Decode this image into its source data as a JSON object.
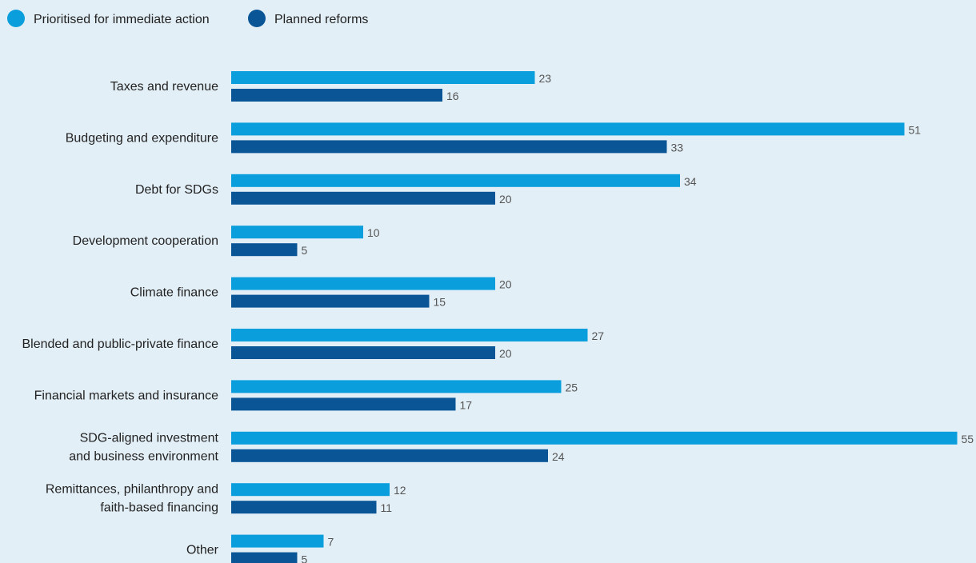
{
  "chart_data": {
    "type": "bar",
    "orientation": "horizontal",
    "title": "",
    "xlabel": "",
    "ylabel": "",
    "legend_position": "top-left",
    "grid": false,
    "xlim": [
      0,
      55
    ],
    "categories": [
      [
        "Taxes and revenue"
      ],
      [
        "Budgeting and expenditure"
      ],
      [
        "Debt for SDGs"
      ],
      [
        "Development cooperation"
      ],
      [
        "Climate finance"
      ],
      [
        "Blended and public-private finance"
      ],
      [
        "Financial markets and insurance"
      ],
      [
        "SDG-aligned investment",
        "and business environment"
      ],
      [
        "Remittances, philanthropy and",
        "faith-based financing"
      ],
      [
        "Other"
      ]
    ],
    "series": [
      {
        "name": "Prioritised for immediate action",
        "color": "#0a9fdc",
        "values": [
          23,
          51,
          34,
          10,
          20,
          27,
          25,
          55,
          12,
          7
        ]
      },
      {
        "name": "Planned reforms",
        "color": "#0a5596",
        "values": [
          16,
          33,
          20,
          5,
          15,
          20,
          17,
          24,
          11,
          5
        ]
      }
    ],
    "label_color": "#555555",
    "category_label_color": "#222222"
  }
}
